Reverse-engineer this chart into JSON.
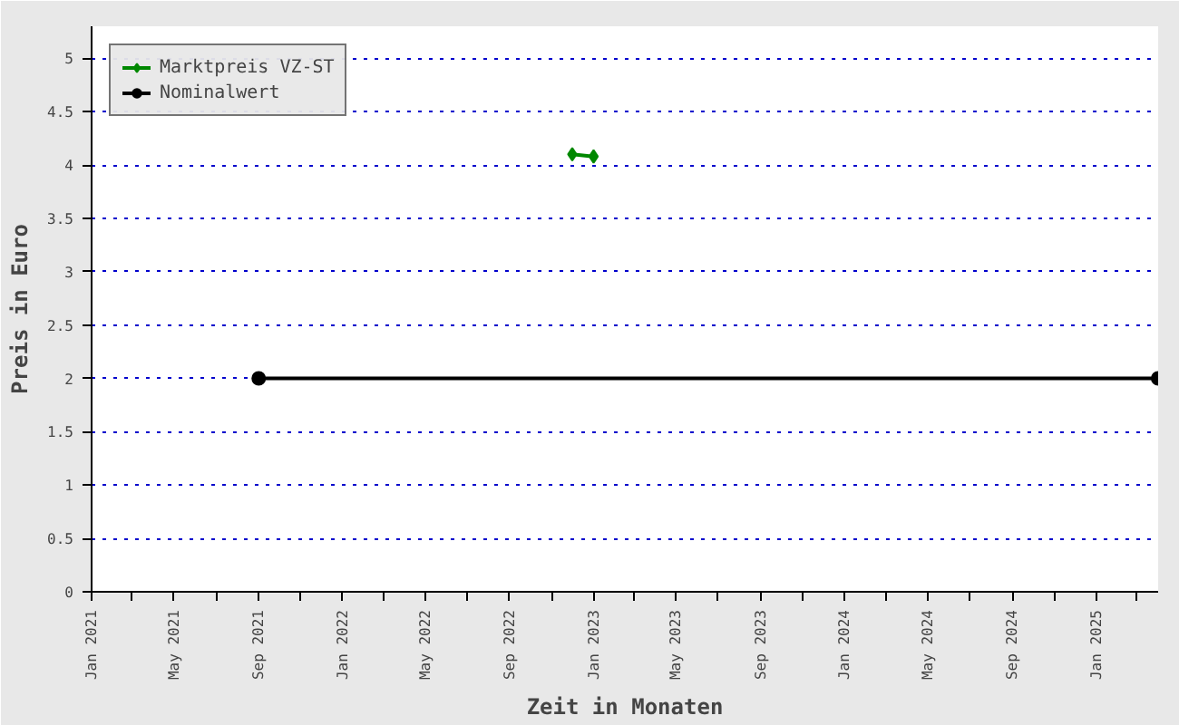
{
  "chart_data": {
    "type": "line",
    "xlabel": "Zeit in Monaten",
    "ylabel": "Preis in Euro",
    "series": [
      {
        "name": "Marktpreis VZ-ST",
        "color": "#008800",
        "marker": "diamond",
        "x": [
          "2022-12",
          "2023-01"
        ],
        "values": [
          4.1,
          4.08
        ]
      },
      {
        "name": "Nominalwert",
        "color": "#000000",
        "marker": "circle",
        "x": [
          "2021-09",
          "2025-04"
        ],
        "values": [
          2,
          2
        ]
      }
    ],
    "xlim": [
      "2021-01",
      "2025-04"
    ],
    "xticks": [
      {
        "value": "2021-01",
        "label": "Jan 2021"
      },
      {
        "value": "2021-03",
        "label": null
      },
      {
        "value": "2021-05",
        "label": "May 2021"
      },
      {
        "value": "2021-07",
        "label": null
      },
      {
        "value": "2021-09",
        "label": "Sep 2021"
      },
      {
        "value": "2021-11",
        "label": null
      },
      {
        "value": "2022-01",
        "label": "Jan 2022"
      },
      {
        "value": "2022-03",
        "label": null
      },
      {
        "value": "2022-05",
        "label": "May 2022"
      },
      {
        "value": "2022-07",
        "label": null
      },
      {
        "value": "2022-09",
        "label": "Sep 2022"
      },
      {
        "value": "2022-11",
        "label": null
      },
      {
        "value": "2023-01",
        "label": "Jan 2023"
      },
      {
        "value": "2023-03",
        "label": null
      },
      {
        "value": "2023-05",
        "label": "May 2023"
      },
      {
        "value": "2023-07",
        "label": null
      },
      {
        "value": "2023-09",
        "label": "Sep 2023"
      },
      {
        "value": "2023-11",
        "label": null
      },
      {
        "value": "2024-01",
        "label": "Jan 2024"
      },
      {
        "value": "2024-03",
        "label": null
      },
      {
        "value": "2024-05",
        "label": "May 2024"
      },
      {
        "value": "2024-07",
        "label": null
      },
      {
        "value": "2024-09",
        "label": "Sep 2024"
      },
      {
        "value": "2024-11",
        "label": null
      },
      {
        "value": "2025-01",
        "label": "Jan 2025"
      },
      {
        "value": "2025-03",
        "label": null
      }
    ],
    "ylim": [
      0,
      5.3
    ],
    "yticks": [
      0,
      0.5,
      1,
      1.5,
      2,
      2.5,
      3,
      3.5,
      4,
      4.5,
      5
    ],
    "grid": "y",
    "legend": "top left"
  }
}
